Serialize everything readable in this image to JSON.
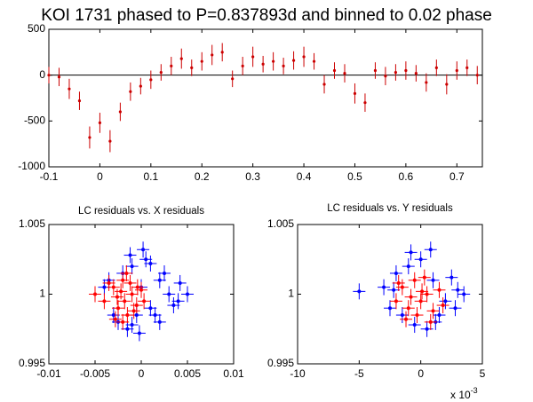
{
  "chart_data": [
    {
      "type": "errorbar",
      "title": "KOI 1731 phased to P=0.837893d and binned to 0.02 phase",
      "xlim": [
        -0.1,
        0.75
      ],
      "xticks": [
        -0.1,
        0,
        0.1,
        0.2,
        0.3,
        0.4,
        0.5,
        0.6,
        0.7
      ],
      "ylim": [
        -1000,
        500
      ],
      "yticks": [
        -1000,
        -500,
        0,
        500
      ],
      "hline": 0,
      "series": [
        {
          "color": "#cc0000",
          "x": [
            -0.1,
            -0.08,
            -0.06,
            -0.04,
            -0.02,
            0,
            0.02,
            0.04,
            0.06,
            0.08,
            0.1,
            0.12,
            0.14,
            0.16,
            0.18,
            0.2,
            0.22,
            0.24,
            0.26,
            0.28,
            0.3,
            0.32,
            0.34,
            0.36,
            0.38,
            0.4,
            0.42,
            0.44,
            0.46,
            0.48,
            0.5,
            0.52,
            0.54,
            0.56,
            0.58,
            0.6,
            0.62,
            0.64,
            0.66,
            0.68,
            0.7,
            0.72,
            0.74
          ],
          "values": [
            0,
            -20,
            -150,
            -280,
            -680,
            -520,
            -720,
            -400,
            -180,
            -120,
            -50,
            30,
            100,
            180,
            80,
            150,
            220,
            250,
            -40,
            100,
            200,
            120,
            150,
            100,
            160,
            200,
            150,
            -100,
            50,
            20,
            -200,
            -300,
            50,
            -10,
            30,
            50,
            20,
            -80,
            80,
            -100,
            50,
            80,
            0
          ],
          "errors": [
            90,
            100,
            110,
            100,
            120,
            110,
            120,
            100,
            100,
            90,
            100,
            90,
            100,
            110,
            90,
            100,
            110,
            100,
            90,
            100,
            110,
            90,
            100,
            90,
            100,
            110,
            90,
            100,
            90,
            100,
            110,
            100,
            90,
            100,
            90,
            100,
            90,
            100,
            90,
            110,
            100,
            90,
            100
          ]
        }
      ]
    },
    {
      "type": "scatter",
      "title": "LC residuals vs. X residuals",
      "xlim": [
        -0.01,
        0.01
      ],
      "xticks": [
        -0.01,
        -0.005,
        0,
        0.005,
        0.01
      ],
      "ylim": [
        0.995,
        1.005
      ],
      "yticks": [
        0.995,
        1,
        1.005
      ],
      "series": [
        {
          "color": "#0000ff",
          "x": [
            -0.004,
            -0.003,
            -0.002,
            -0.001,
            0,
            0.001,
            0.002,
            0.003,
            0.004,
            0.005,
            -0.0035,
            -0.0025,
            -0.0015,
            -0.0005,
            0.0005,
            0.0015,
            0.0025,
            0.0035,
            0.001,
            -0.001,
            0.0002,
            -0.0012,
            0.002,
            0.0042,
            -0.0002
          ],
          "values": [
            1.0005,
            0.9985,
            1.0015,
            1.002,
            1.0005,
            0.999,
            1.001,
            1.0,
            0.9995,
            1.0,
            1.001,
            0.998,
            0.9975,
            0.9985,
            1.0025,
            0.9985,
            1.0015,
            0.9992,
            1.0022,
            0.9978,
            1.0032,
            1.0028,
            0.998,
            1.0008,
            0.9972
          ]
        },
        {
          "color": "#ff0000",
          "x": [
            -0.005,
            -0.004,
            -0.003,
            -0.0025,
            -0.002,
            -0.0015,
            -0.001,
            -0.0005,
            0,
            -0.0018,
            -0.0022,
            -0.0012,
            -0.0028,
            -0.0008,
            0.0003,
            -0.0035,
            -0.0016,
            -0.0004,
            -0.0026,
            -0.002
          ],
          "values": [
            1.0,
            0.9995,
            1.0005,
            0.999,
            1.001,
            0.9985,
            1.0,
            0.9992,
            1.0003,
            0.9995,
            1.0002,
            1.0008,
            0.9982,
            0.9988,
            0.9995,
            1.0008,
            1.0015,
            1.0005,
            0.9998,
            0.998
          ]
        }
      ]
    },
    {
      "type": "scatter",
      "title": "LC residuals vs. Y residuals",
      "xlim": [
        -10,
        5
      ],
      "xticks": [
        -10,
        -5,
        0,
        5
      ],
      "x_multiplier": {
        "base": "x 10",
        "exponent": "-3"
      },
      "ylim": [
        0.995,
        1.005
      ],
      "yticks": [
        0.995,
        1,
        1.005
      ],
      "series": [
        {
          "color": "#0000ff",
          "x": [
            -5,
            -3,
            -2.5,
            -2,
            -1,
            0,
            1,
            2,
            3,
            3.5,
            -1.5,
            -0.5,
            0.5,
            1.5,
            2.5,
            -2.2,
            0.8,
            -0.8,
            1.2,
            2.8
          ],
          "values": [
            1.0002,
            1.0005,
            0.999,
            1.0015,
            1.002,
            1.0025,
            1.001,
            0.9995,
            1.0003,
            1.0,
            0.9985,
            0.9978,
            0.9975,
            0.9985,
            1.0012,
            1.0003,
            1.0032,
            1.003,
            0.998,
            0.999
          ]
        },
        {
          "color": "#ff0000",
          "x": [
            -2,
            -1.5,
            -1,
            -0.5,
            0,
            0.5,
            1,
            1.5,
            -1.2,
            0.3,
            -0.3,
            0.8,
            -0.8,
            1.8,
            0.1,
            -1.8
          ],
          "values": [
            0.9995,
            1.0005,
            0.999,
            1.001,
            0.9995,
            1.0,
            0.9988,
            1.0003,
            0.9982,
            1.0012,
            0.9985,
            0.998,
            0.9998,
            0.9992,
            1.0002,
            1.0008
          ]
        }
      ]
    }
  ]
}
